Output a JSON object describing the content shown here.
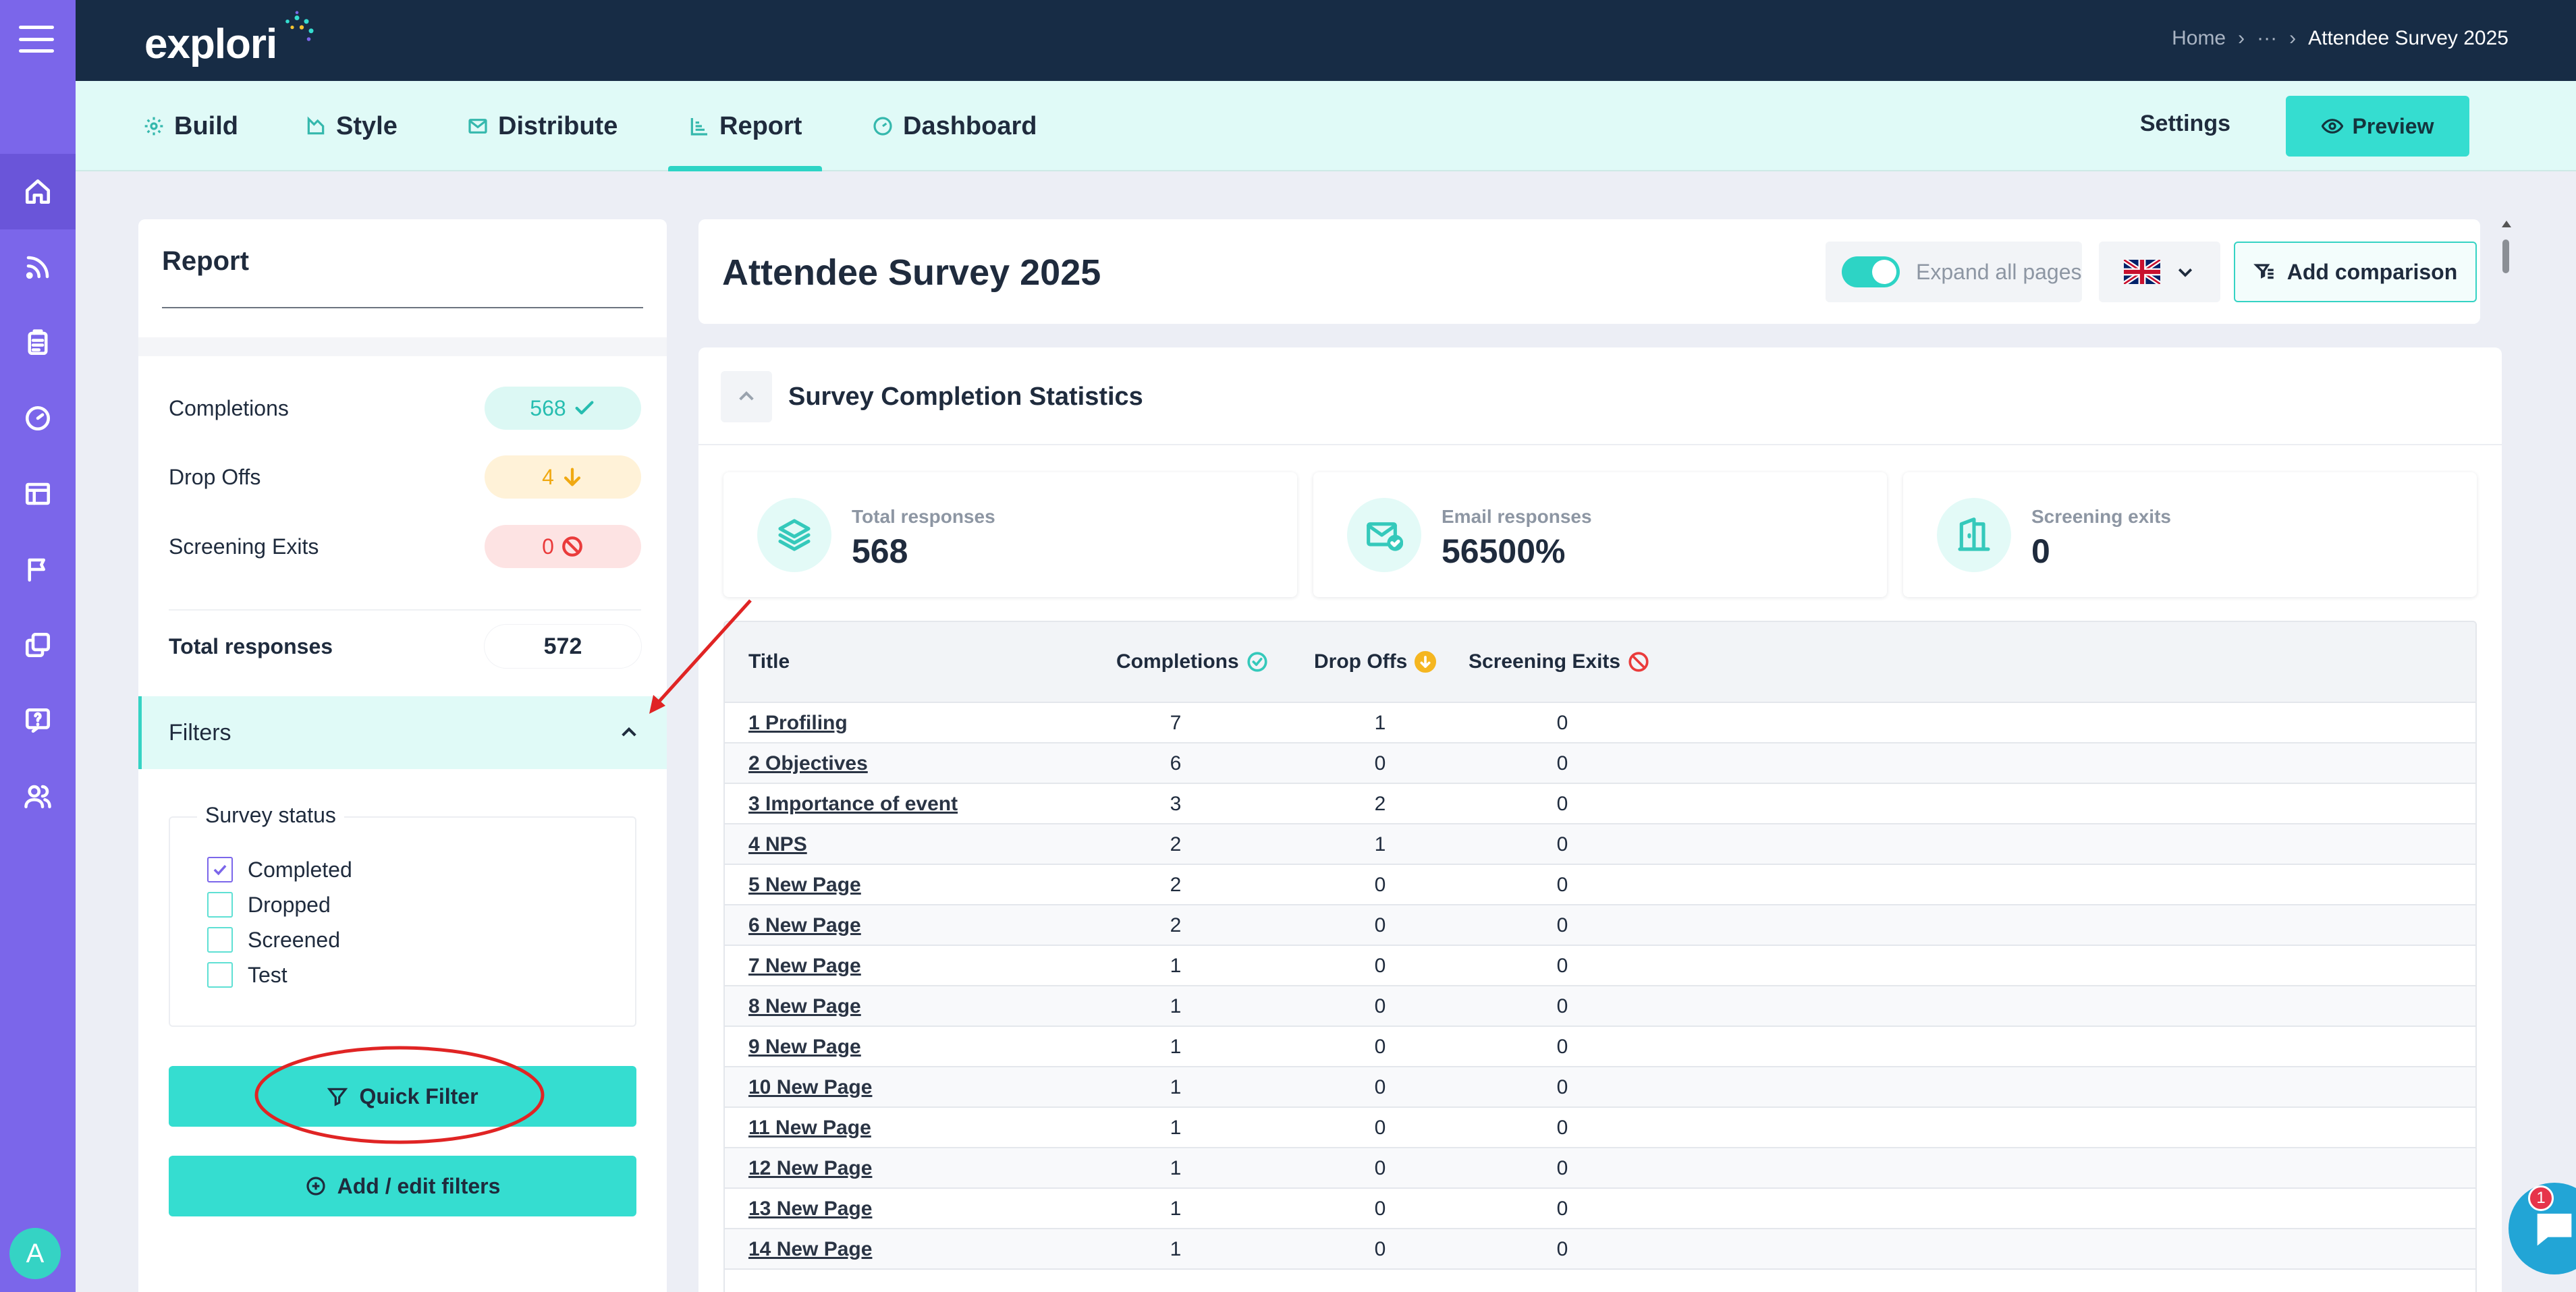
{
  "header": {
    "logo_text": "explori",
    "breadcrumb": {
      "home": "Home",
      "ellipsis": "···",
      "current": "Attendee Survey 2025"
    }
  },
  "tabs": [
    {
      "label": "Build",
      "icon": "gear-icon",
      "active": false
    },
    {
      "label": "Style",
      "icon": "palette-icon",
      "active": false
    },
    {
      "label": "Distribute",
      "icon": "envelope-icon",
      "active": false
    },
    {
      "label": "Report",
      "icon": "chart-icon",
      "active": true
    },
    {
      "label": "Dashboard",
      "icon": "gauge-icon",
      "active": false
    }
  ],
  "toolbar": {
    "settings_label": "Settings",
    "preview_label": "Preview"
  },
  "sidebar_nav": [
    "home-icon",
    "rss-icon",
    "clipboard-icon",
    "gauge-icon",
    "layout-icon",
    "flag-icon",
    "copy-icon",
    "help-icon",
    "users-icon"
  ],
  "user": {
    "avatar_initial": "A"
  },
  "report_panel": {
    "title": "Report",
    "stats": [
      {
        "label": "Completions",
        "value": "568",
        "color": "#26bdb0"
      },
      {
        "label": "Drop Offs",
        "value": "4",
        "color": "#f0a912"
      },
      {
        "label": "Screening Exits",
        "value": "0",
        "color": "#ea3b3b"
      }
    ],
    "total_label": "Total responses",
    "total_value": "572",
    "filters_label": "Filters",
    "survey_status_legend": "Survey status",
    "status_options": [
      {
        "label": "Completed",
        "checked": true
      },
      {
        "label": "Dropped",
        "checked": false
      },
      {
        "label": "Screened",
        "checked": false
      },
      {
        "label": "Test",
        "checked": false
      }
    ],
    "quick_filter_label": "Quick Filter",
    "add_edit_filters_label": "Add / edit filters"
  },
  "survey": {
    "title": "Attendee Survey 2025",
    "expand_all_label": "Expand all pages",
    "expand_all_on": true,
    "language_flag": "uk-flag-icon",
    "add_comparison_label": "Add comparison"
  },
  "completion_stats": {
    "section_title": "Survey Completion Statistics",
    "kpis": [
      {
        "label": "Total responses",
        "value": "568",
        "icon": "layers-icon"
      },
      {
        "label": "Email responses",
        "value": "56500%",
        "icon": "mail-check-icon"
      },
      {
        "label": "Screening exits",
        "value": "0",
        "icon": "door-exit-icon"
      }
    ],
    "table": {
      "columns": [
        "Title",
        "Completions",
        "Drop Offs",
        "Screening Exits"
      ],
      "rows": [
        [
          "1 Profiling",
          "7",
          "1",
          "0"
        ],
        [
          "2 Objectives",
          "6",
          "0",
          "0"
        ],
        [
          "3 Importance of event",
          "3",
          "2",
          "0"
        ],
        [
          "4 NPS",
          "2",
          "1",
          "0"
        ],
        [
          "5 New Page",
          "2",
          "0",
          "0"
        ],
        [
          "6 New Page",
          "2",
          "0",
          "0"
        ],
        [
          "7 New Page",
          "1",
          "0",
          "0"
        ],
        [
          "8 New Page",
          "1",
          "0",
          "0"
        ],
        [
          "9 New Page",
          "1",
          "0",
          "0"
        ],
        [
          "10 New Page",
          "1",
          "0",
          "0"
        ],
        [
          "11 New Page",
          "1",
          "0",
          "0"
        ],
        [
          "12 New Page",
          "1",
          "0",
          "0"
        ],
        [
          "13 New Page",
          "1",
          "0",
          "0"
        ],
        [
          "14 New Page",
          "1",
          "0",
          "0"
        ]
      ]
    }
  },
  "chat": {
    "badge_count": "1"
  },
  "colors": {
    "rail": "#7b66ea",
    "topbar": "#172c45",
    "accent": "#35ddd0",
    "annotation": "#e02424"
  }
}
